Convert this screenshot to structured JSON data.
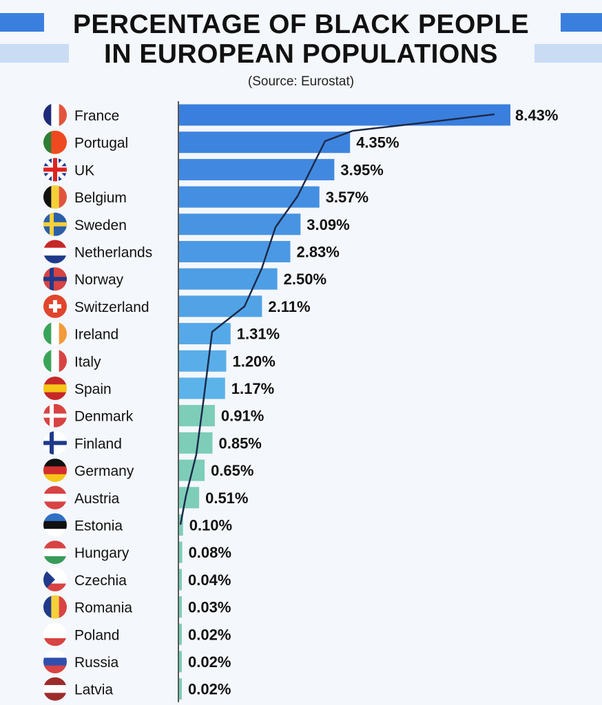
{
  "chart_data": {
    "type": "bar",
    "orientation": "horizontal",
    "title_line1": "PERCENTAGE OF BLACK PEOPLE",
    "title_line2": "IN EUROPEAN POPULATIONS",
    "source": "(Source: Eurostat)",
    "xlabel": "",
    "ylabel": "",
    "xlim": [
      0,
      8.43
    ],
    "grid": false,
    "categories": [
      "France",
      "Portugal",
      "UK",
      "Belgium",
      "Sweden",
      "Netherlands",
      "Norway",
      "Switzerland",
      "Ireland",
      "Italy",
      "Spain",
      "Denmark",
      "Finland",
      "Germany",
      "Austria",
      "Estonia",
      "Hungary",
      "Czechia",
      "Romania",
      "Poland",
      "Russia",
      "Latvia"
    ],
    "values": [
      8.43,
      4.35,
      3.95,
      3.57,
      3.09,
      2.83,
      2.5,
      2.11,
      1.31,
      1.2,
      1.17,
      0.91,
      0.85,
      0.65,
      0.51,
      0.1,
      0.08,
      0.04,
      0.03,
      0.02,
      0.02,
      0.02
    ],
    "value_labels": [
      "8.43%",
      "4.35%",
      "3.95%",
      "3.57%",
      "3.09%",
      "2.83%",
      "2.50%",
      "2.11%",
      "1.31%",
      "1.20%",
      "1.17%",
      "0.91%",
      "0.85%",
      "0.65%",
      "0.51%",
      "0.10%",
      "0.08%",
      "0.04%",
      "0.03%",
      "0.02%",
      "0.02%",
      "0.02%"
    ],
    "flags": [
      {
        "dir": "v",
        "colors": [
          "#1f2a7a",
          "#ffffff",
          "#e2553d"
        ]
      },
      {
        "dir": "v",
        "colors": [
          "#2e7d32",
          "#ef4a1f",
          "#ef4a1f"
        ]
      },
      {
        "dir": "uk",
        "colors": [
          "#1f3a8a",
          "#ffffff",
          "#d22"
        ]
      },
      {
        "dir": "v",
        "colors": [
          "#111111",
          "#f5d03b",
          "#e0553d"
        ]
      },
      {
        "dir": "cross",
        "colors": [
          "#2b5fa8",
          "#f5d03b"
        ]
      },
      {
        "dir": "h",
        "colors": [
          "#c62828",
          "#ffffff",
          "#1f3a8a"
        ]
      },
      {
        "dir": "cross",
        "colors": [
          "#d84343",
          "#1f3a8a"
        ]
      },
      {
        "dir": "swiss",
        "colors": [
          "#e0452e",
          "#ffffff"
        ]
      },
      {
        "dir": "v",
        "colors": [
          "#3aa35a",
          "#ffffff",
          "#f39a3a"
        ]
      },
      {
        "dir": "v",
        "colors": [
          "#3aa35a",
          "#ffffff",
          "#d84343"
        ]
      },
      {
        "dir": "h",
        "colors": [
          "#c62828",
          "#f5c518",
          "#c62828"
        ]
      },
      {
        "dir": "cross",
        "colors": [
          "#d84343",
          "#ffffff"
        ]
      },
      {
        "dir": "cross",
        "colors": [
          "#ffffff",
          "#1f3a8a"
        ]
      },
      {
        "dir": "h",
        "colors": [
          "#111111",
          "#d32f2f",
          "#f5c518"
        ]
      },
      {
        "dir": "h",
        "colors": [
          "#d84343",
          "#ffffff",
          "#d84343"
        ]
      },
      {
        "dir": "h",
        "colors": [
          "#2f6fc4",
          "#111111",
          "#ffffff"
        ]
      },
      {
        "dir": "h",
        "colors": [
          "#d84343",
          "#ffffff",
          "#3a9a5a"
        ]
      },
      {
        "dir": "h",
        "colors": [
          "#ffffff",
          "#ffffff",
          "#d84343"
        ]
      },
      {
        "dir": "v",
        "colors": [
          "#1f3a8a",
          "#f5d03b",
          "#d84343"
        ]
      },
      {
        "dir": "h",
        "colors": [
          "#ffffff",
          "#ffffff",
          "#d84343"
        ]
      },
      {
        "dir": "h",
        "colors": [
          "#ffffff",
          "#2f4fb0",
          "#d84343"
        ]
      },
      {
        "dir": "h",
        "colors": [
          "#9e2b2b",
          "#ffffff",
          "#9e2b2b"
        ]
      }
    ],
    "colors": {
      "bar_top": "#3a7fde",
      "bar_mid": "#5cb3ea",
      "bar_low": "#7dcdb8",
      "title_bar": "#3a7fde",
      "title_bar_light": "#c9dcf4",
      "trend_line": "#1d2a4a"
    }
  }
}
